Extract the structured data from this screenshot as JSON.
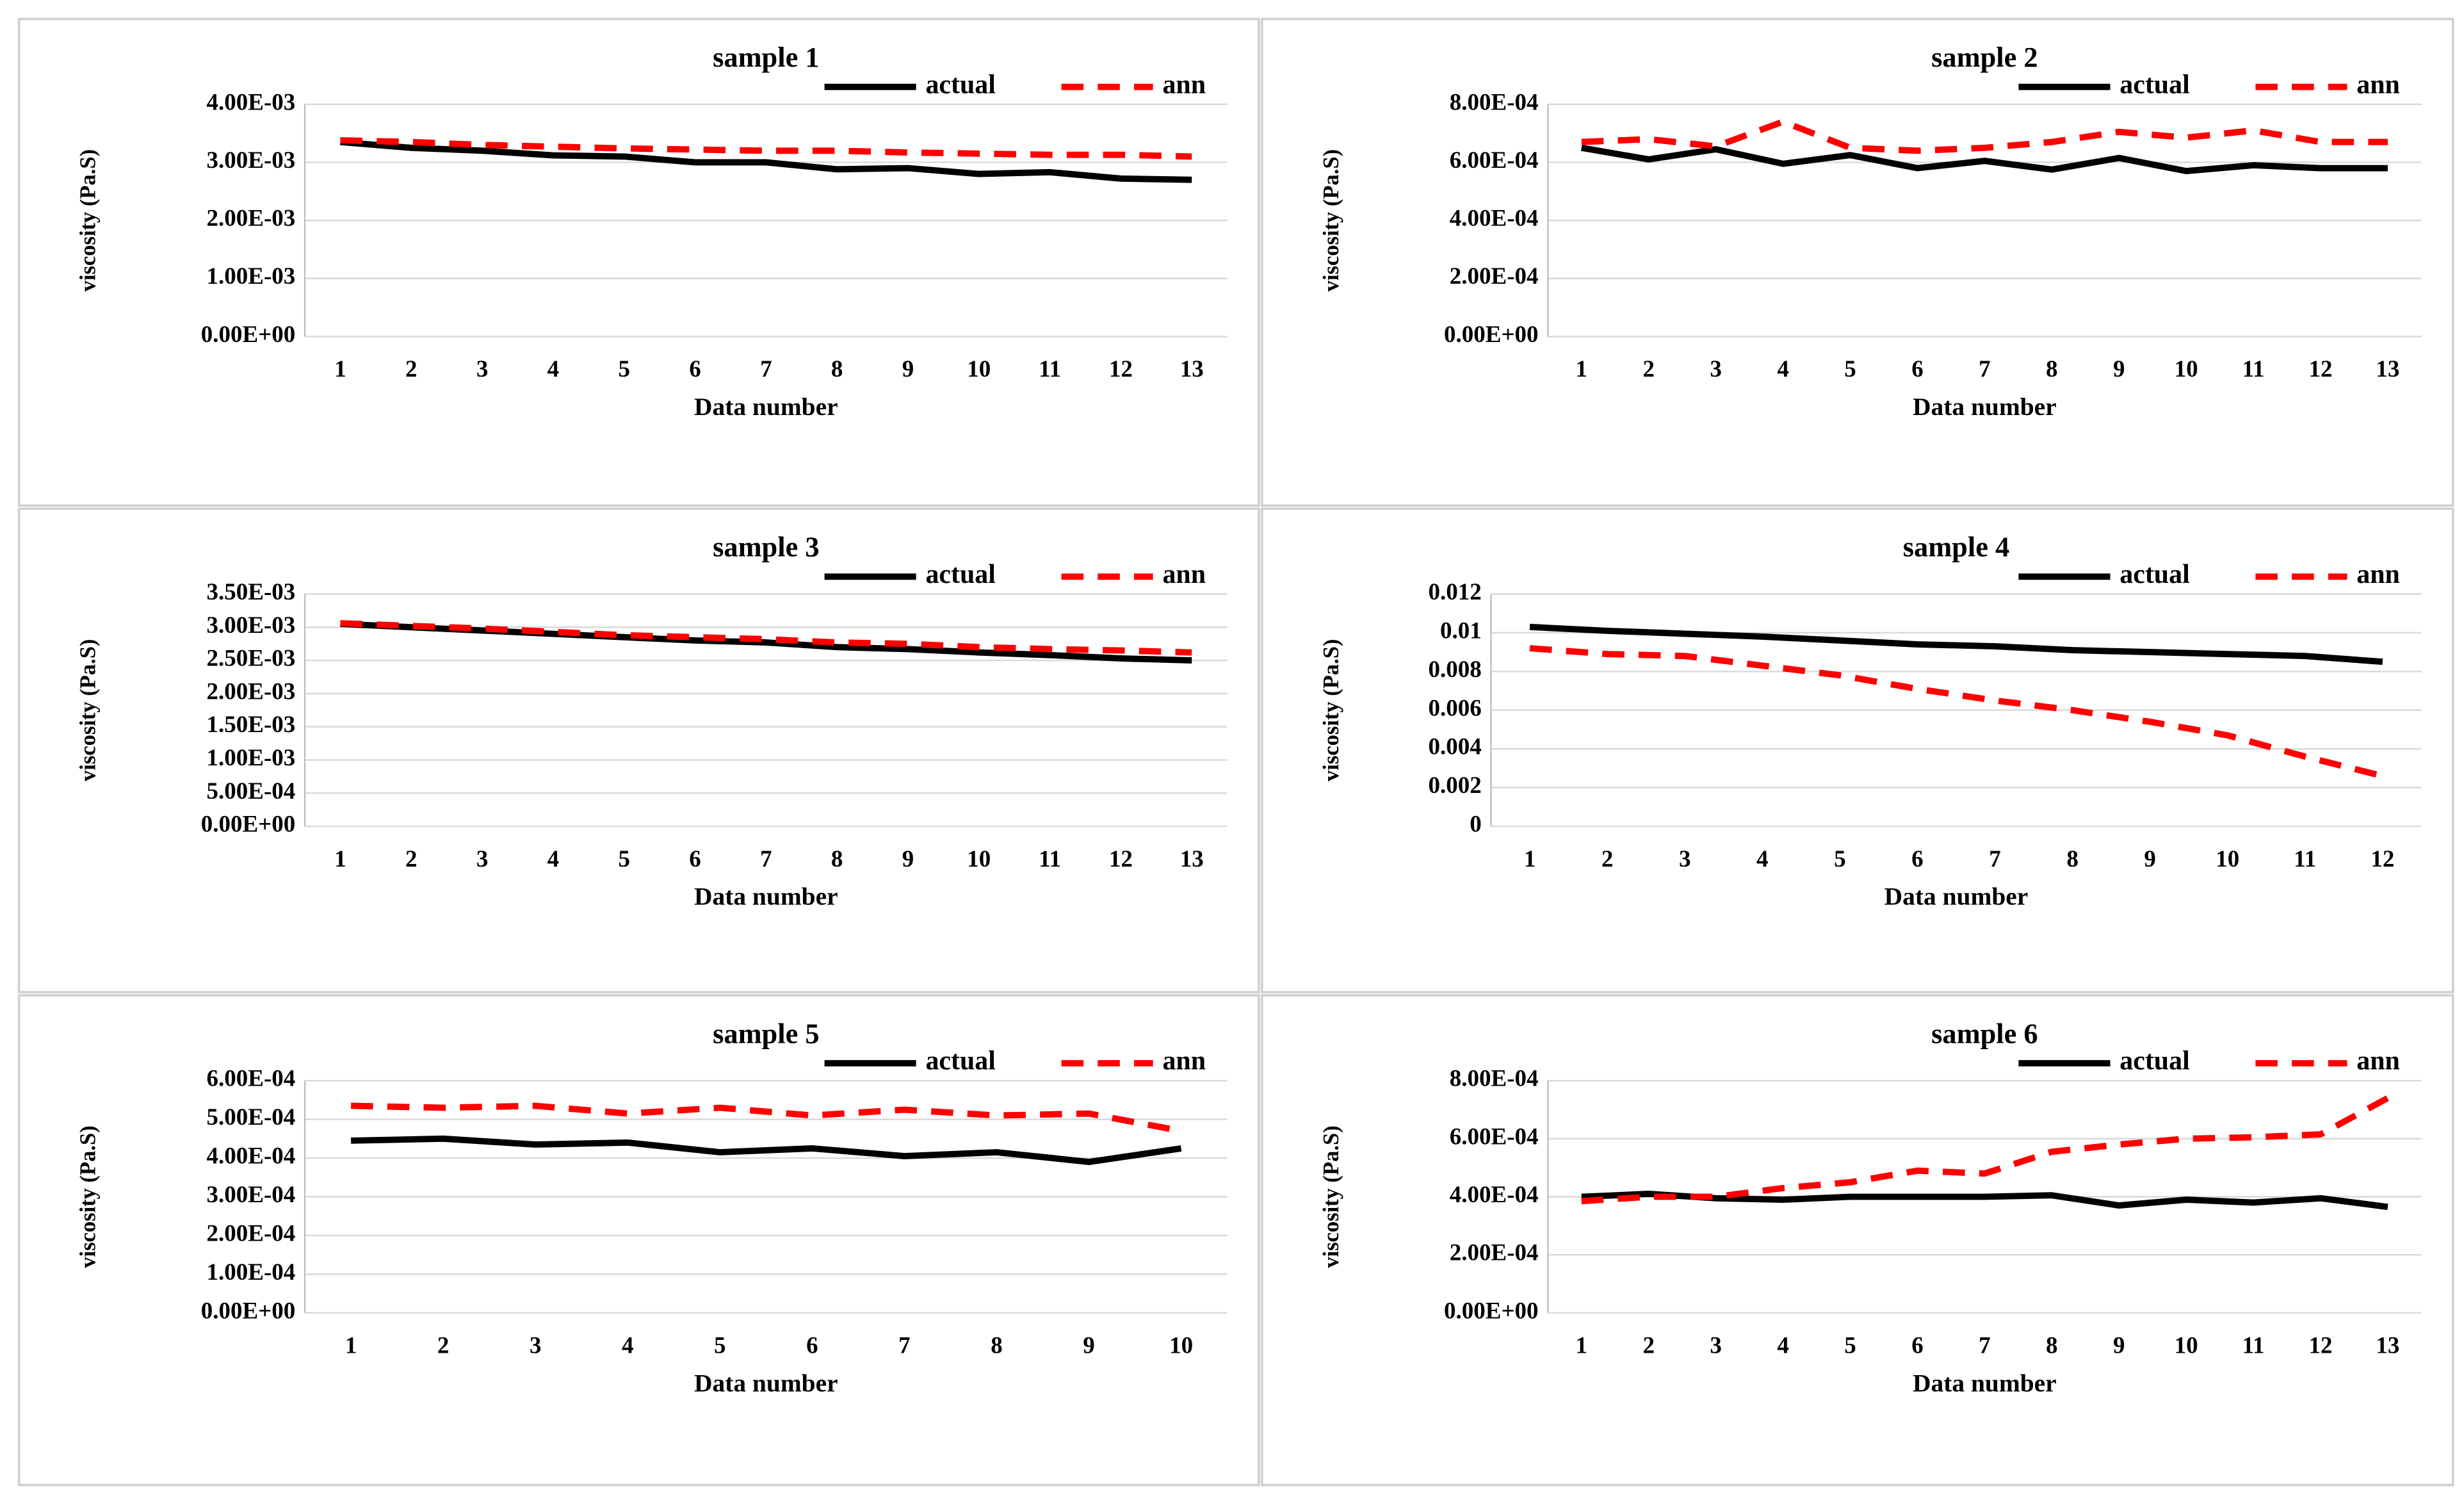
{
  "chart_data": [
    {
      "type": "line",
      "title": "sample 1",
      "x_label": "Data number",
      "y_label": "viscosity (Pa.S)",
      "legend": "upper right",
      "grid": true,
      "categories": [
        "1",
        "2",
        "3",
        "4",
        "5",
        "6",
        "7",
        "8",
        "9",
        "10",
        "11",
        "12",
        "13"
      ],
      "ylim": [
        0,
        0.004
      ],
      "yticks": [
        {
          "value": 0,
          "label": "0.00E+00"
        },
        {
          "value": 0.001,
          "label": "1.00E-03"
        },
        {
          "value": 0.002,
          "label": "2.00E-03"
        },
        {
          "value": 0.003,
          "label": "3.00E-03"
        },
        {
          "value": 0.004,
          "label": "4.00E-03"
        }
      ],
      "series": [
        {
          "name": "actual",
          "color": "#000000",
          "dashed": false,
          "values": [
            0.00335,
            0.00325,
            0.0032,
            0.00312,
            0.0031,
            0.003,
            0.003,
            0.00288,
            0.0029,
            0.0028,
            0.00283,
            0.00272,
            0.0027
          ]
        },
        {
          "name": "ann",
          "color": "#ff0000",
          "dashed": true,
          "values": [
            0.00338,
            0.00335,
            0.0033,
            0.00327,
            0.00324,
            0.00322,
            0.0032,
            0.0032,
            0.00317,
            0.00315,
            0.00313,
            0.00313,
            0.0031
          ]
        }
      ]
    },
    {
      "type": "line",
      "title": "sample 2",
      "x_label": "Data number",
      "y_label": "viscosity (Pa.S)",
      "legend": "upper right",
      "grid": true,
      "categories": [
        "1",
        "2",
        "3",
        "4",
        "5",
        "6",
        "7",
        "8",
        "9",
        "10",
        "11",
        "12",
        "13"
      ],
      "ylim": [
        0,
        0.0008
      ],
      "yticks": [
        {
          "value": 0,
          "label": "0.00E+00"
        },
        {
          "value": 0.0002,
          "label": "2.00E-04"
        },
        {
          "value": 0.0004,
          "label": "4.00E-04"
        },
        {
          "value": 0.0006,
          "label": "6.00E-04"
        },
        {
          "value": 0.0008,
          "label": "8.00E-04"
        }
      ],
      "series": [
        {
          "name": "actual",
          "color": "#000000",
          "dashed": false,
          "values": [
            0.00065,
            0.00061,
            0.000645,
            0.000595,
            0.000625,
            0.00058,
            0.000605,
            0.000575,
            0.000615,
            0.00057,
            0.00059,
            0.00058,
            0.00058
          ]
        },
        {
          "name": "ann",
          "color": "#ff0000",
          "dashed": true,
          "values": [
            0.00067,
            0.00068,
            0.000655,
            0.00074,
            0.00065,
            0.00064,
            0.00065,
            0.00067,
            0.000705,
            0.000685,
            0.00071,
            0.00067,
            0.00067
          ]
        }
      ]
    },
    {
      "type": "line",
      "title": "sample 3",
      "x_label": "Data number",
      "y_label": "viscosity (Pa.S)",
      "legend": "upper right",
      "grid": true,
      "categories": [
        "1",
        "2",
        "3",
        "4",
        "5",
        "6",
        "7",
        "8",
        "9",
        "10",
        "11",
        "12",
        "13"
      ],
      "ylim": [
        0,
        0.0035
      ],
      "yticks": [
        {
          "value": 0,
          "label": "0.00E+00"
        },
        {
          "value": 0.0005,
          "label": "5.00E-04"
        },
        {
          "value": 0.001,
          "label": "1.00E-03"
        },
        {
          "value": 0.0015,
          "label": "1.50E-03"
        },
        {
          "value": 0.002,
          "label": "2.00E-03"
        },
        {
          "value": 0.0025,
          "label": "2.50E-03"
        },
        {
          "value": 0.003,
          "label": "3.00E-03"
        },
        {
          "value": 0.0035,
          "label": "3.50E-03"
        }
      ],
      "series": [
        {
          "name": "actual",
          "color": "#000000",
          "dashed": false,
          "values": [
            0.00305,
            0.003,
            0.00295,
            0.0029,
            0.00285,
            0.0028,
            0.00277,
            0.0027,
            0.00267,
            0.00262,
            0.00258,
            0.00253,
            0.0025
          ]
        },
        {
          "name": "ann",
          "color": "#ff0000",
          "dashed": true,
          "values": [
            0.00306,
            0.00302,
            0.00298,
            0.00293,
            0.00288,
            0.00285,
            0.00282,
            0.00277,
            0.00275,
            0.0027,
            0.00267,
            0.00265,
            0.00262
          ]
        }
      ]
    },
    {
      "type": "line",
      "title": "sample 4",
      "x_label": "Data number",
      "y_label": "viscosity (Pa.S)",
      "legend": "upper right",
      "grid": true,
      "categories": [
        "1",
        "2",
        "3",
        "4",
        "5",
        "6",
        "7",
        "8",
        "9",
        "10",
        "11",
        "12"
      ],
      "ylim": [
        0,
        0.012
      ],
      "yticks": [
        0,
        0.002,
        0.004,
        0.006,
        0.008,
        0.01,
        0.012
      ],
      "series": [
        {
          "name": "actual",
          "color": "#000000",
          "dashed": false,
          "values": [
            0.0103,
            0.0101,
            0.00995,
            0.0098,
            0.0096,
            0.0094,
            0.0093,
            0.0091,
            0.009,
            0.0089,
            0.0088,
            0.0085
          ]
        },
        {
          "name": "ann",
          "color": "#ff0000",
          "dashed": true,
          "values": [
            0.0092,
            0.0089,
            0.0088,
            0.0083,
            0.0078,
            0.0071,
            0.0065,
            0.006,
            0.0054,
            0.0047,
            0.0036,
            0.0026
          ]
        }
      ]
    },
    {
      "type": "line",
      "title": "sample 5",
      "x_label": "Data number",
      "y_label": "viscosity (Pa.S)",
      "legend": "upper right",
      "grid": true,
      "categories": [
        "1",
        "2",
        "3",
        "4",
        "5",
        "6",
        "7",
        "8",
        "9",
        "10"
      ],
      "ylim": [
        0,
        0.0006
      ],
      "yticks": [
        {
          "value": 0,
          "label": "0.00E+00"
        },
        {
          "value": 0.0001,
          "label": "1.00E-04"
        },
        {
          "value": 0.0002,
          "label": "2.00E-04"
        },
        {
          "value": 0.0003,
          "label": "3.00E-04"
        },
        {
          "value": 0.0004,
          "label": "4.00E-04"
        },
        {
          "value": 0.0005,
          "label": "5.00E-04"
        },
        {
          "value": 0.0006,
          "label": "6.00E-04"
        }
      ],
      "series": [
        {
          "name": "actual",
          "color": "#000000",
          "dashed": false,
          "values": [
            0.000445,
            0.00045,
            0.000435,
            0.00044,
            0.000415,
            0.000425,
            0.000405,
            0.000415,
            0.00039,
            0.000425
          ]
        },
        {
          "name": "ann",
          "color": "#ff0000",
          "dashed": true,
          "values": [
            0.000535,
            0.00053,
            0.000535,
            0.000515,
            0.00053,
            0.00051,
            0.000525,
            0.00051,
            0.000515,
            0.00047
          ]
        }
      ]
    },
    {
      "type": "line",
      "title": "sample 6",
      "x_label": "Data number",
      "y_label": "viscosity (Pa.S)",
      "legend": "upper right",
      "grid": true,
      "categories": [
        "1",
        "2",
        "3",
        "4",
        "5",
        "6",
        "7",
        "8",
        "9",
        "10",
        "11",
        "12",
        "13"
      ],
      "ylim": [
        0,
        0.0008
      ],
      "yticks": [
        {
          "value": 0,
          "label": "0.00E+00"
        },
        {
          "value": 0.0002,
          "label": "2.00E-04"
        },
        {
          "value": 0.0004,
          "label": "4.00E-04"
        },
        {
          "value": 0.0006,
          "label": "6.00E-04"
        },
        {
          "value": 0.0008,
          "label": "8.00E-04"
        }
      ],
      "series": [
        {
          "name": "actual",
          "color": "#000000",
          "dashed": false,
          "values": [
            0.0004,
            0.00041,
            0.000395,
            0.00039,
            0.0004,
            0.0004,
            0.0004,
            0.000405,
            0.00037,
            0.00039,
            0.00038,
            0.000395,
            0.000365
          ]
        },
        {
          "name": "ann",
          "color": "#ff0000",
          "dashed": true,
          "values": [
            0.000385,
            0.0004,
            0.0004,
            0.00043,
            0.00045,
            0.00049,
            0.00048,
            0.000555,
            0.00058,
            0.0006,
            0.000605,
            0.000615,
            0.00074
          ]
        }
      ]
    }
  ]
}
